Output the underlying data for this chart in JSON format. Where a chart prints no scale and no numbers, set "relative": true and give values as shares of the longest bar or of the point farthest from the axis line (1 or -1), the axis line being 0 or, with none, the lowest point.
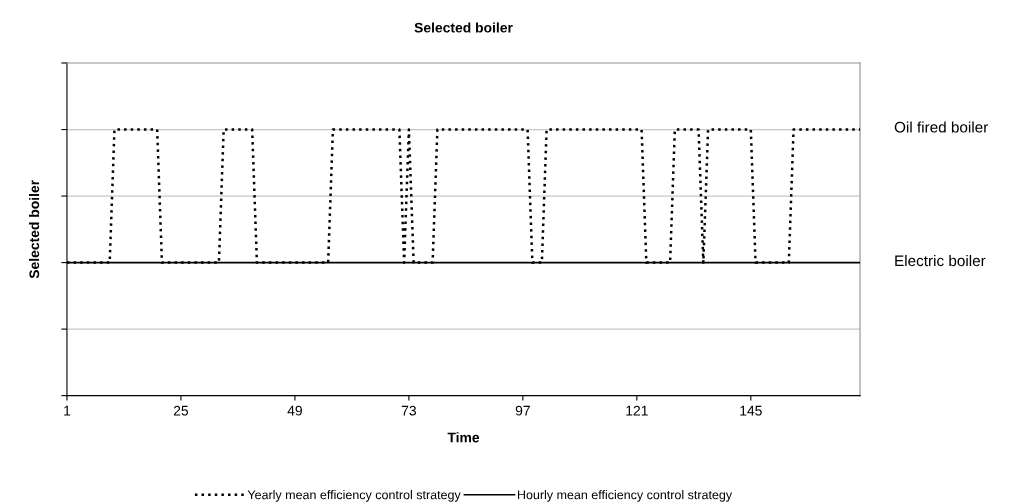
{
  "chart_data": {
    "type": "line",
    "title": "Selected boiler",
    "xlabel": "Time",
    "ylabel": "Selected boiler",
    "relative": true,
    "xlim": [
      1,
      168
    ],
    "xticks": [
      1,
      25,
      49,
      73,
      97,
      121,
      145
    ],
    "legend": "bottom",
    "tick_labels": "x",
    "ref_lines": [
      {
        "axis": "y",
        "value": 0.25,
        "color": "#c8c8c8"
      },
      {
        "axis": "y",
        "value": 0.75,
        "color": "#c8c8c8"
      },
      {
        "axis": "y",
        "value": 1,
        "color": "#c8c8c8"
      }
    ],
    "series": [
      {
        "name": "Yearly mean efficiency control strategy",
        "color": "#000000",
        "line_style": "dotted",
        "x": [
          1,
          10,
          11,
          20,
          21,
          33,
          34,
          40,
          41,
          56,
          57,
          71,
          72,
          73,
          74,
          78,
          79,
          98,
          99,
          101,
          102,
          122,
          123,
          128,
          129,
          134,
          135,
          136,
          145,
          146,
          153,
          154,
          168
        ],
        "values": [
          0.5,
          0.5,
          1,
          1,
          0.5,
          0.5,
          1,
          1,
          0.5,
          0.5,
          1,
          1,
          0.5,
          1,
          0.5,
          0.5,
          1,
          1,
          0.5,
          0.5,
          1,
          1,
          0.5,
          0.5,
          1,
          1,
          0.5,
          1,
          1,
          0.5,
          0.5,
          1,
          1
        ]
      },
      {
        "name": "Hourly mean efficiency control strategy",
        "color": "#000000",
        "line_style": "solid",
        "x": [
          1,
          168
        ],
        "values": [
          0.5,
          0.5
        ]
      }
    ],
    "annotations": [
      "Oil fired boiler",
      "Electric boiler"
    ]
  }
}
